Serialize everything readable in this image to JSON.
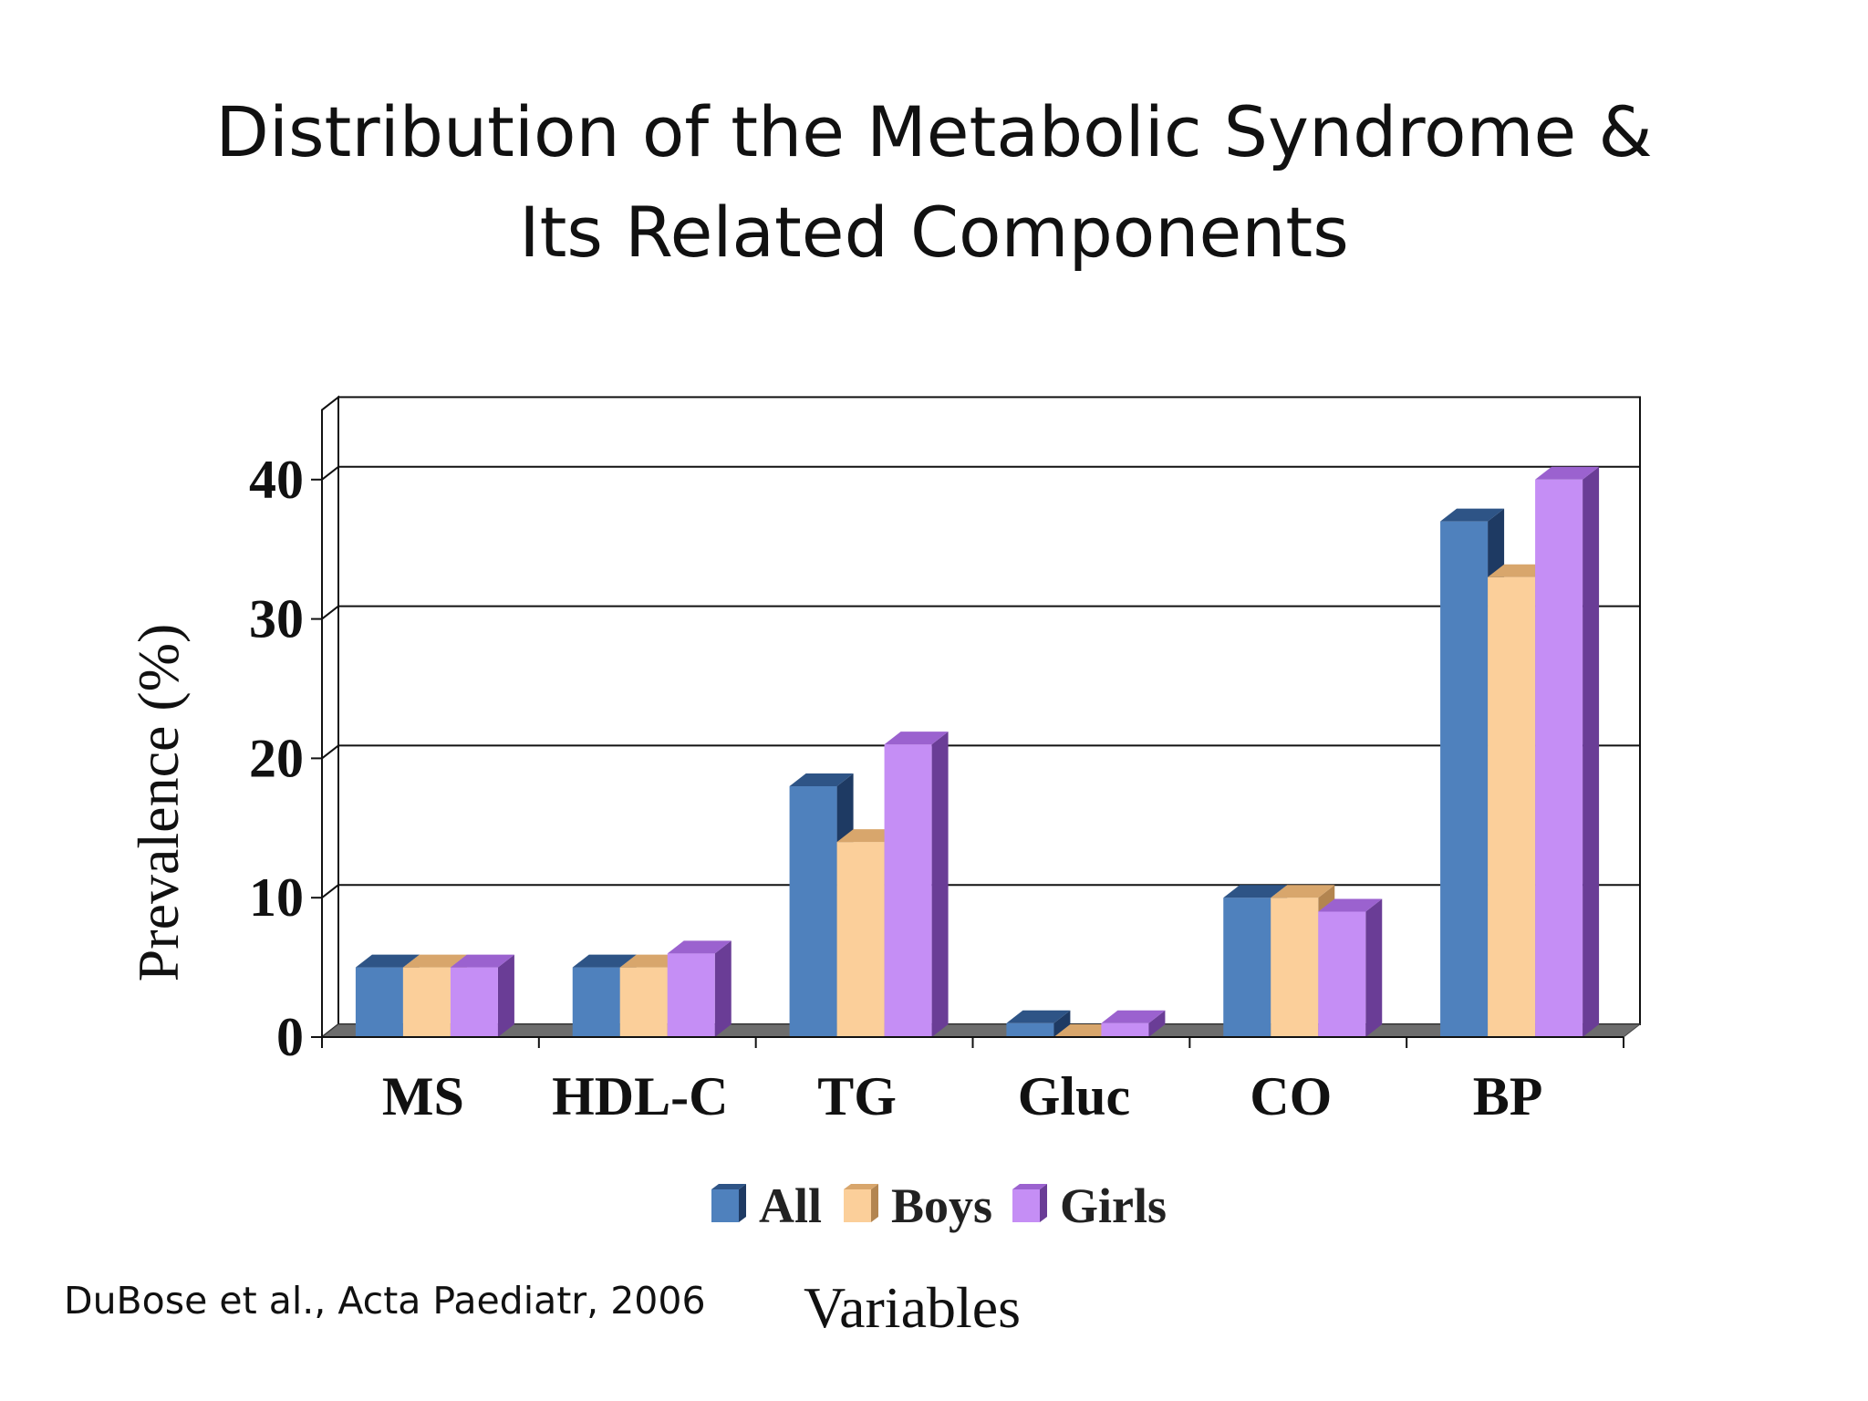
{
  "slide": {
    "title_line_1": "Distribution of the Metabolic Syndrome &",
    "title_line_2": "Its Related Components",
    "citation": "DuBose et al., Acta Paediatr, 2006"
  },
  "chart_data": {
    "type": "bar",
    "style": "3d-clustered",
    "categories": [
      "MS",
      "HDL-C",
      "TG",
      "Gluc",
      "CO",
      "BP"
    ],
    "series": [
      {
        "name": "All",
        "values": [
          5,
          5,
          18,
          1,
          10,
          37
        ]
      },
      {
        "name": "Boys",
        "values": [
          5,
          5,
          14,
          0,
          10,
          33
        ]
      },
      {
        "name": "Girls",
        "values": [
          5,
          6,
          21,
          1,
          9,
          40
        ]
      }
    ],
    "xlabel": "Variables",
    "ylabel": "Prevalence (%)",
    "ylim": [
      0,
      45
    ],
    "yticks": [
      "0",
      "10",
      "20",
      "30",
      "40"
    ],
    "grid": true,
    "legend_position": "bottom",
    "colors": {
      "All": {
        "front": "#4f81bd",
        "top": "#2e5486",
        "side": "#1e3a63"
      },
      "Boys": {
        "front": "#fbcf9a",
        "top": "#d8a66c",
        "side": "#b38550"
      },
      "Girls": {
        "front": "#c58ef5",
        "top": "#9b62cf",
        "side": "#6a3d96"
      }
    },
    "floor_color": "#6d6d6d"
  }
}
